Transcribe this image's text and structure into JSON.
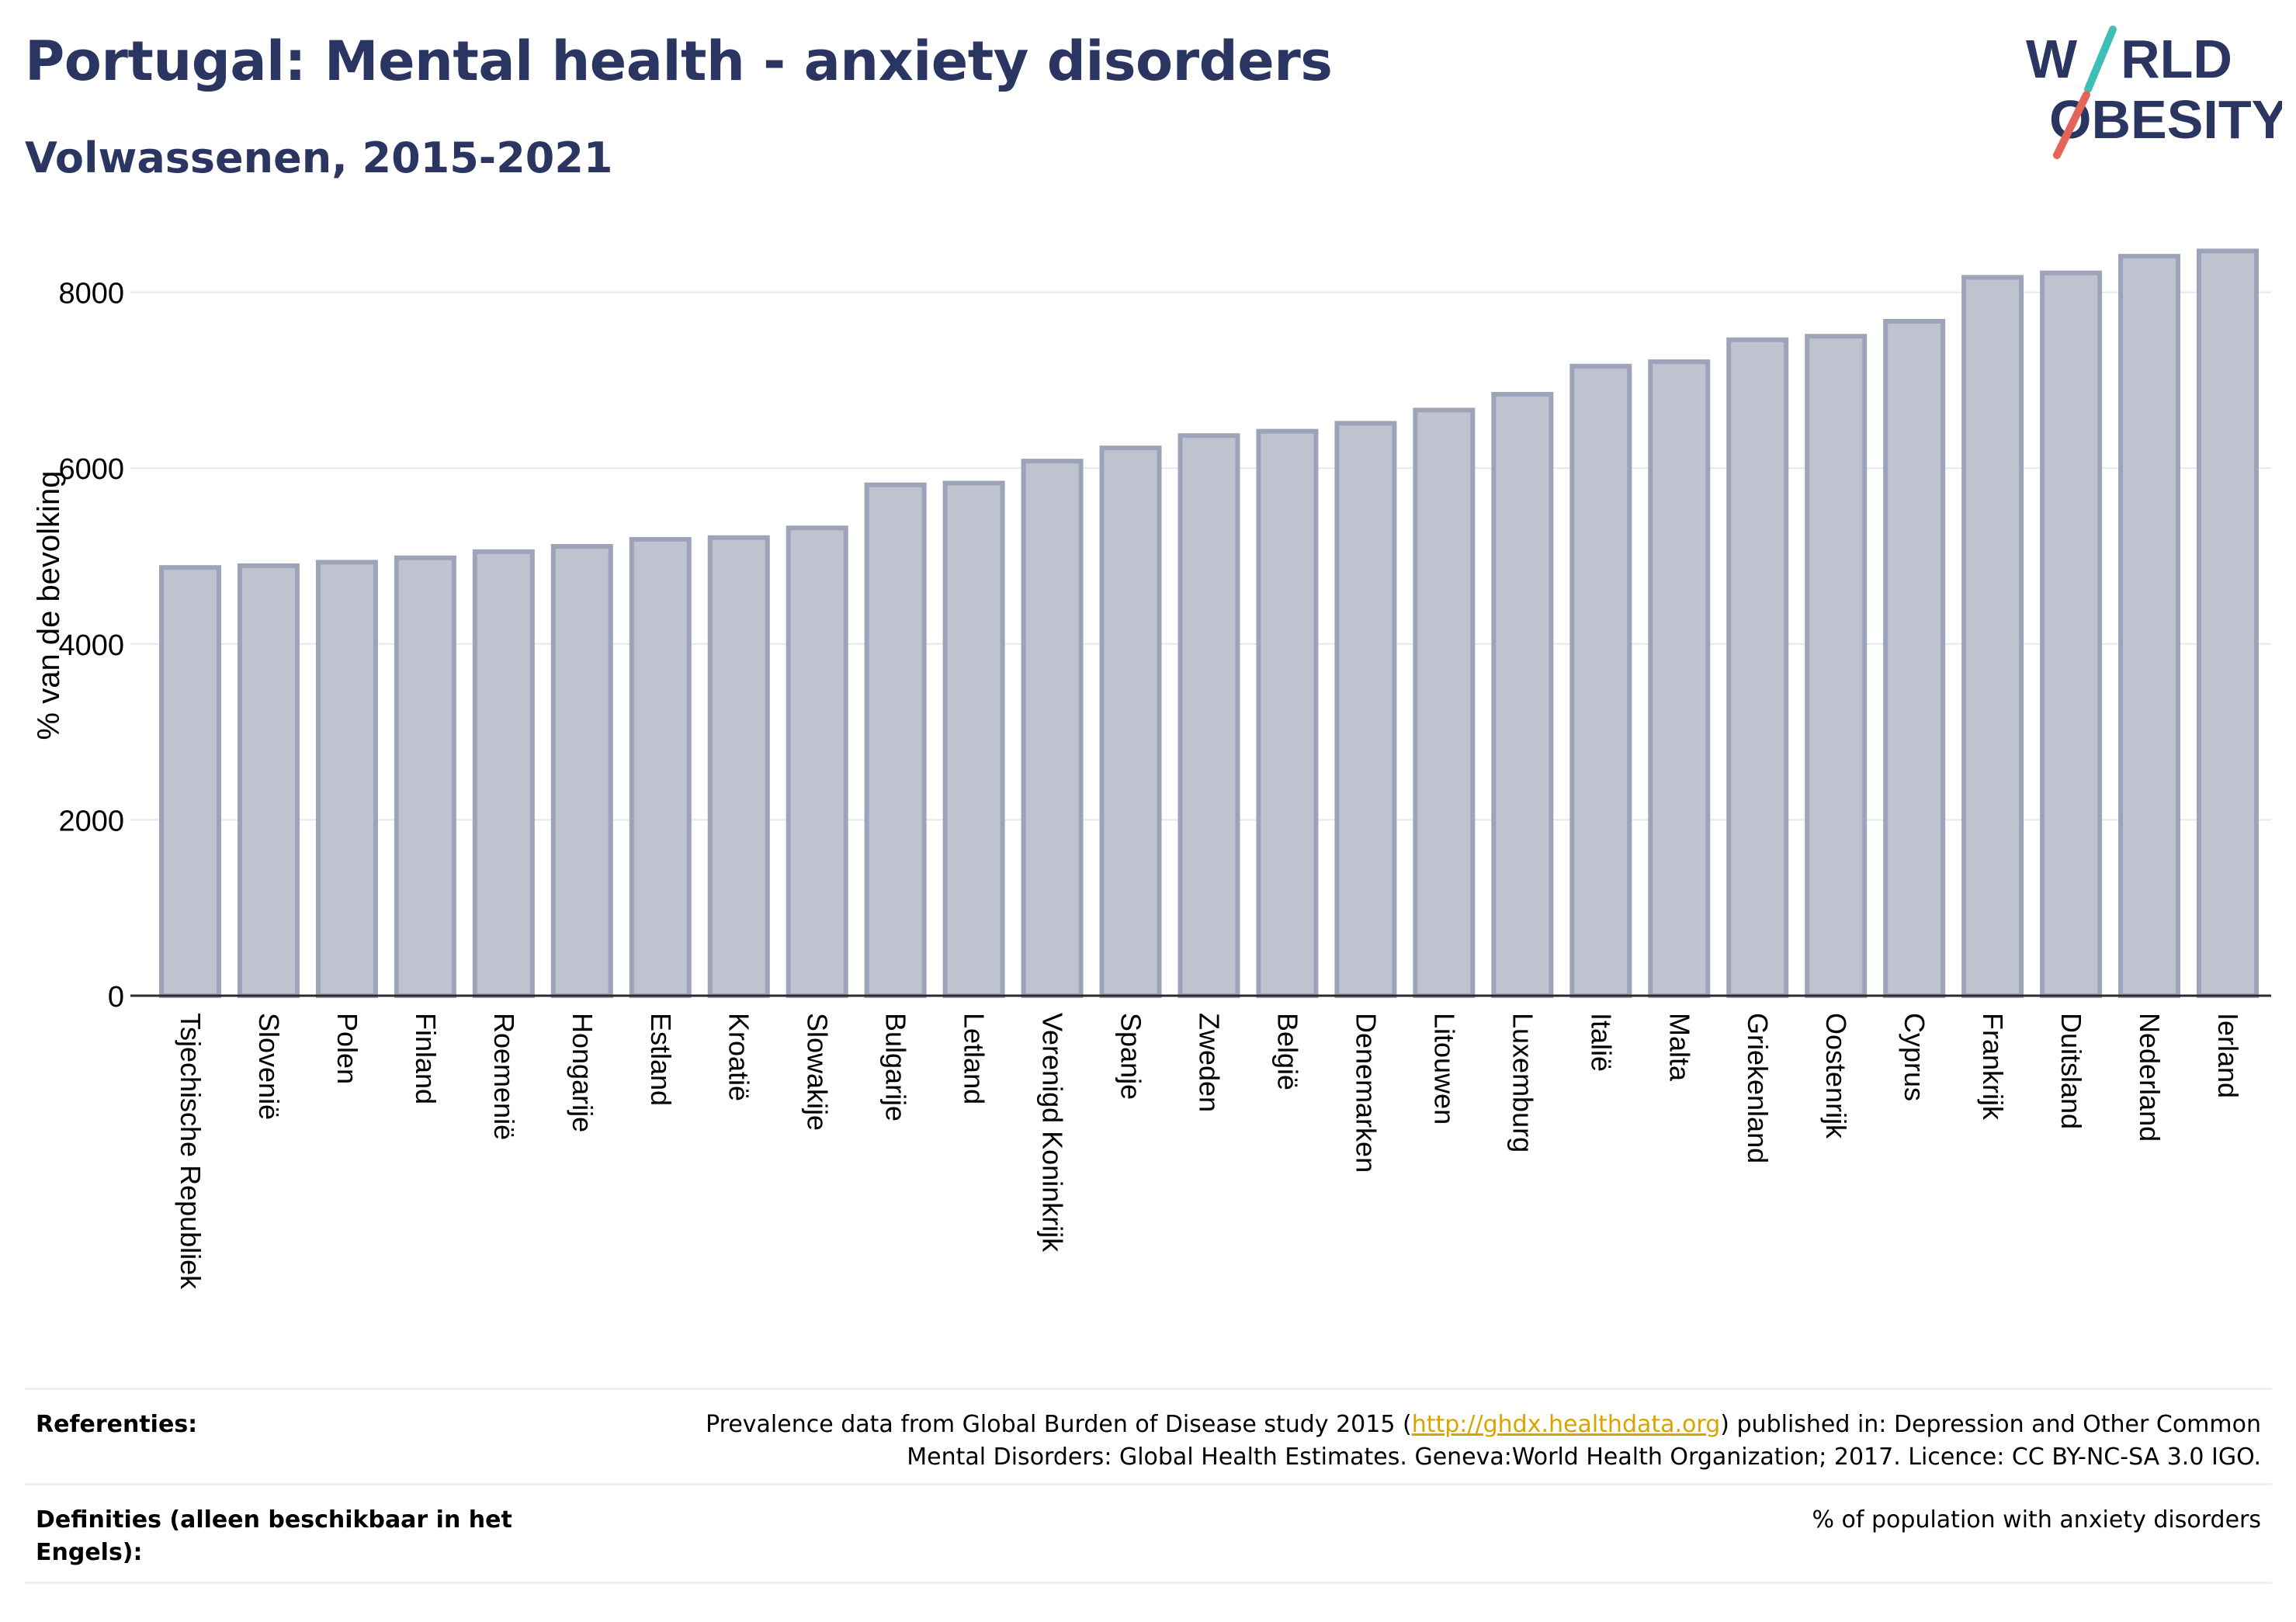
{
  "header": {
    "title": "Portugal: Mental health - anxiety disorders",
    "subtitle": "Volwassenen, 2015-2021"
  },
  "logo": {
    "line1_a": "W",
    "line1_b": "RLD",
    "line2_a": "O",
    "line2_b": "BESITY",
    "colors": {
      "text": "#2b3561",
      "slash_top": "#3dbfb7",
      "slash_bottom": "#e4645a"
    }
  },
  "chart_data": {
    "type": "bar",
    "ylabel": "% van de bevolking",
    "xlabel": "",
    "ylim": [
      0,
      8800
    ],
    "yticks": [
      0,
      2000,
      4000,
      6000,
      8000
    ],
    "grid": true,
    "legend": "none",
    "bar_color": "#bfc3d0",
    "bar_edge_color": "#9da3b9",
    "categories": [
      "Tsjechische Republiek",
      "Slovenië",
      "Polen",
      "Finland",
      "Roemenië",
      "Hongarije",
      "Estland",
      "Kroatië",
      "Slowakije",
      "Bulgarije",
      "Letland",
      "Verenigd Koninkrijk",
      "Spanje",
      "Zweden",
      "België",
      "Denemarken",
      "Litouwen",
      "Luxemburg",
      "Italië",
      "Malta",
      "Griekenland",
      "Oostenrijk",
      "Cyprus",
      "Frankrijk",
      "Duitsland",
      "Nederland",
      "Ierland"
    ],
    "values": [
      4870,
      4890,
      4930,
      4980,
      5050,
      5110,
      5190,
      5210,
      5320,
      5810,
      5830,
      6080,
      6230,
      6370,
      6420,
      6510,
      6660,
      6840,
      7160,
      7210,
      7460,
      7500,
      7670,
      8170,
      8220,
      8410,
      8470
    ]
  },
  "references": {
    "ref_label": "Referenties:",
    "ref_text_before": "Prevalence data from Global Burden of Disease study 2015 (",
    "ref_link": "http://ghdx.healthdata.org",
    "ref_text_after": ") published in: Depression and Other Common",
    "ref_text_line2": "Mental Disorders: Global Health Estimates. Geneva:World Health Organization; 2017. Licence: CC BY-NC-SA 3.0 IGO.",
    "def_label_line1": "Definities (alleen beschikbaar in het",
    "def_label_line2": "Engels):",
    "def_text": "% of population with anxiety disorders"
  }
}
